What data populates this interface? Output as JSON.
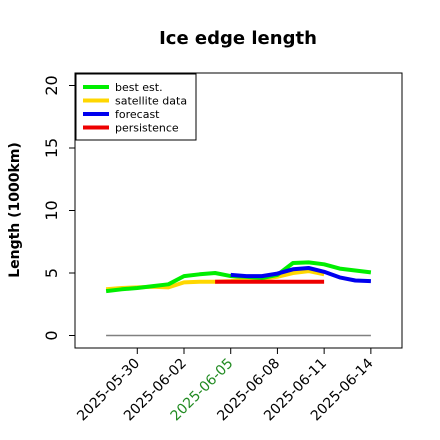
{
  "chart_data": {
    "type": "line",
    "title": "Ice edge length",
    "ylabel": "Length (1000km)",
    "xlabel": "",
    "ylim": [
      -1,
      21
    ],
    "yticks": [
      0,
      5,
      10,
      15,
      20
    ],
    "xlim": [
      "2025-05-26",
      "2025-06-16"
    ],
    "xticks": [
      {
        "date": "2025-05-30",
        "label": "2025-05-30",
        "color": "#000000"
      },
      {
        "date": "2025-06-02",
        "label": "2025-06-02",
        "color": "#000000"
      },
      {
        "date": "2025-06-05",
        "label": "2025-06-05",
        "color": "#228B22"
      },
      {
        "date": "2025-06-08",
        "label": "2025-06-08",
        "color": "#000000"
      },
      {
        "date": "2025-06-11",
        "label": "2025-06-11",
        "color": "#000000"
      },
      {
        "date": "2025-06-14",
        "label": "2025-06-14",
        "color": "#000000"
      }
    ],
    "grid": false,
    "legend_position": "top-left",
    "series": [
      {
        "name": "best est.",
        "color": "#00ee00",
        "x": [
          "2025-05-28",
          "2025-05-29",
          "2025-05-30",
          "2025-05-31",
          "2025-06-01",
          "2025-06-02",
          "2025-06-03",
          "2025-06-04",
          "2025-06-05",
          "2025-06-06",
          "2025-06-07",
          "2025-06-08",
          "2025-06-09",
          "2025-06-10",
          "2025-06-11",
          "2025-06-12",
          "2025-06-13",
          "2025-06-14"
        ],
        "y": [
          3.55,
          3.7,
          3.8,
          3.95,
          4.1,
          4.75,
          4.9,
          5.0,
          4.75,
          4.7,
          4.6,
          4.85,
          5.8,
          5.85,
          5.7,
          5.35,
          5.2,
          5.05
        ]
      },
      {
        "name": "satellite data",
        "color": "#ffd700",
        "x": [
          "2025-05-28",
          "2025-05-29",
          "2025-05-30",
          "2025-05-31",
          "2025-06-01",
          "2025-06-02",
          "2025-06-03",
          "2025-06-04",
          "2025-06-05",
          "2025-06-06",
          "2025-06-07",
          "2025-06-08",
          "2025-06-09",
          "2025-06-10",
          "2025-06-11"
        ],
        "y": [
          3.7,
          3.8,
          3.85,
          3.9,
          3.85,
          4.25,
          4.3,
          4.3,
          4.35,
          4.5,
          4.55,
          4.7,
          5.0,
          5.15,
          4.9
        ]
      },
      {
        "name": "forecast",
        "color": "#0000ee",
        "x": [
          "2025-06-05",
          "2025-06-06",
          "2025-06-07",
          "2025-06-08",
          "2025-06-09",
          "2025-06-10",
          "2025-06-11",
          "2025-06-12",
          "2025-06-13",
          "2025-06-14"
        ],
        "y": [
          4.85,
          4.75,
          4.75,
          4.95,
          5.3,
          5.4,
          5.1,
          4.65,
          4.4,
          4.35
        ]
      },
      {
        "name": "persistence",
        "color": "#ee0000",
        "x": [
          "2025-06-04",
          "2025-06-11"
        ],
        "y": [
          4.3,
          4.3
        ]
      },
      {
        "name": "",
        "color": "#808080",
        "x": [
          "2025-05-28",
          "2025-06-14"
        ],
        "y": [
          0,
          0
        ]
      }
    ]
  }
}
